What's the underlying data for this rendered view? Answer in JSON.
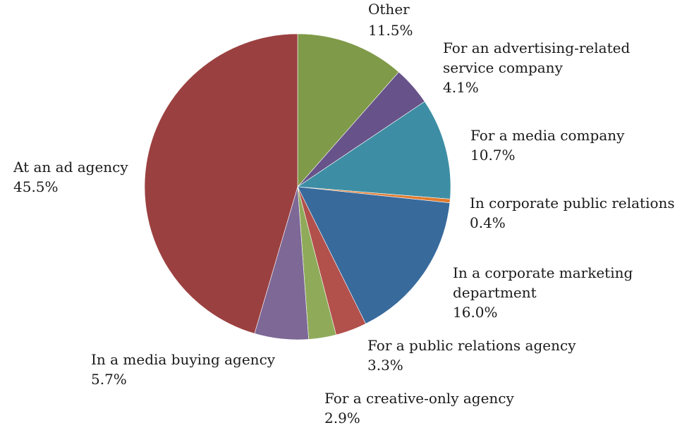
{
  "chart_data": {
    "type": "pie",
    "title": "",
    "unit": "%",
    "start": "12 o'clock",
    "direction": "clockwise",
    "legend": "none",
    "slices": [
      {
        "name": "Other",
        "value": 11.5,
        "display": "11.5%",
        "color": "#7f9a48"
      },
      {
        "name": "For an advertising-related service company",
        "value": 4.1,
        "display": "4.1%",
        "color": "#67538a"
      },
      {
        "name": "For a media company",
        "value": 10.7,
        "display": "10.7%",
        "color": "#3d8ea4"
      },
      {
        "name": "In corporate public relations",
        "value": 0.4,
        "display": "0.4%",
        "color": "#e07b2f"
      },
      {
        "name": "In a corporate marketing department",
        "value": 16.0,
        "display": "16.0%",
        "color": "#386a9c"
      },
      {
        "name": "For a public relations agency",
        "value": 3.3,
        "display": "3.3%",
        "color": "#b2504c"
      },
      {
        "name": "For a creative-only agency",
        "value": 2.9,
        "display": "2.9%",
        "color": "#8fab5a"
      },
      {
        "name": "In a media buying agency",
        "value": 5.7,
        "display": "5.7%",
        "color": "#7d6896"
      },
      {
        "name": "At an ad agency",
        "value": 45.5,
        "display": "45.5%",
        "color": "#9b4040"
      }
    ]
  }
}
